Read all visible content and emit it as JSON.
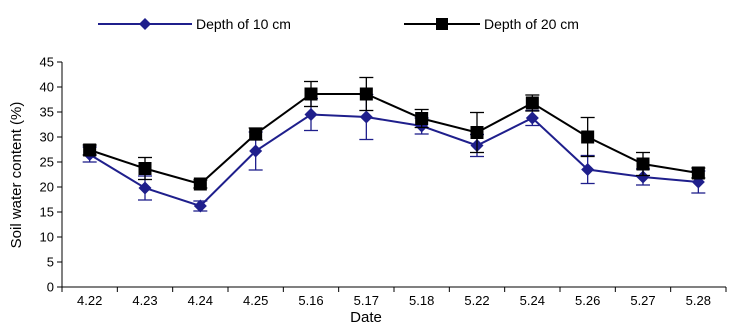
{
  "chart_data": {
    "type": "line",
    "xlabel": "Date",
    "ylabel": "Soil water content (%)",
    "ylim": [
      0,
      45
    ],
    "yticks": [
      0,
      5,
      10,
      15,
      20,
      25,
      30,
      35,
      40,
      45
    ],
    "grid": false,
    "legend_position": "top",
    "categories": [
      "4.22",
      "4.23",
      "4.24",
      "4.25",
      "5.16",
      "5.17",
      "5.18",
      "5.22",
      "5.24",
      "5.26",
      "5.27",
      "5.28"
    ],
    "series": [
      {
        "name": "Depth of 10 cm",
        "color": "#1f1f8c",
        "marker": "diamond",
        "values": [
          26.5,
          19.8,
          16.2,
          27.2,
          34.5,
          34.0,
          32.2,
          28.3,
          33.8,
          23.5,
          22.0,
          21.0
        ],
        "errors": [
          1.5,
          2.4,
          1.0,
          3.8,
          3.2,
          4.5,
          1.6,
          2.2,
          1.5,
          2.8,
          1.6,
          2.2
        ]
      },
      {
        "name": "Depth of 20 cm",
        "color": "#000000",
        "marker": "square",
        "values": [
          27.4,
          23.7,
          20.6,
          30.6,
          38.6,
          38.6,
          33.7,
          30.9,
          36.8,
          30.0,
          24.6,
          22.8
        ],
        "errors": [
          1.0,
          2.2,
          0.8,
          1.2,
          2.5,
          3.3,
          1.8,
          4.0,
          1.6,
          3.9,
          2.3,
          1.0
        ]
      }
    ]
  }
}
